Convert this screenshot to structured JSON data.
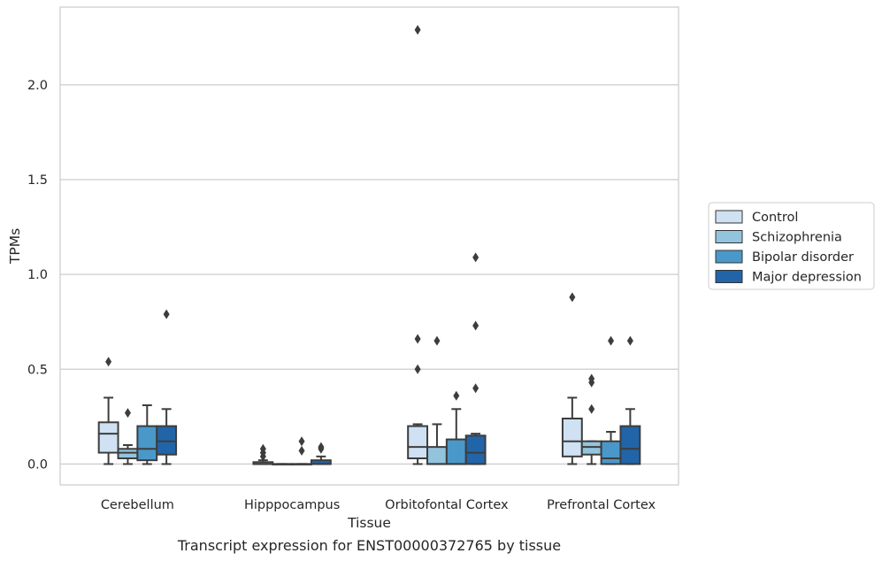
{
  "chart_data": {
    "type": "box",
    "title": "",
    "xlabel": "Tissue",
    "ylabel": "TPMs",
    "caption": "Transcript expression for ENST00000372765 by tissue",
    "ylim": [
      -0.11,
      2.41
    ],
    "yticks": [
      0.0,
      0.5,
      1.0,
      1.5,
      2.0
    ],
    "ytick_labels": [
      "0.0",
      "0.5",
      "1.0",
      "1.5",
      "2.0"
    ],
    "grid": "horizontal",
    "legend_position": "right",
    "categories": [
      "Cerebellum",
      "Hipppocampus",
      "Orbitofontal Cortex",
      "Prefrontal Cortex"
    ],
    "series": [
      {
        "name": "Control",
        "color": "#cfe1f2",
        "boxes": [
          {
            "whislo": 0.0,
            "q1": 0.06,
            "med": 0.16,
            "q3": 0.22,
            "whishi": 0.35,
            "fliers": [
              0.54
            ]
          },
          {
            "whislo": 0.0,
            "q1": 0.0,
            "med": 0.0,
            "q3": 0.01,
            "whishi": 0.02,
            "fliers": [
              0.04,
              0.06,
              0.08
            ]
          },
          {
            "whislo": 0.0,
            "q1": 0.03,
            "med": 0.09,
            "q3": 0.2,
            "whishi": 0.21,
            "fliers": [
              0.5,
              0.66,
              2.29
            ]
          },
          {
            "whislo": 0.0,
            "q1": 0.04,
            "med": 0.12,
            "q3": 0.24,
            "whishi": 0.35,
            "fliers": [
              0.88
            ]
          }
        ]
      },
      {
        "name": "Schizophrenia",
        "color": "#93c4de",
        "boxes": [
          {
            "whislo": 0.0,
            "q1": 0.03,
            "med": 0.06,
            "q3": 0.08,
            "whishi": 0.1,
            "fliers": [
              0.27
            ]
          },
          {
            "whislo": 0.0,
            "q1": 0.0,
            "med": 0.0,
            "q3": 0.0,
            "whishi": 0.0,
            "fliers": []
          },
          {
            "whislo": 0.0,
            "q1": 0.0,
            "med": 0.0,
            "q3": 0.09,
            "whishi": 0.21,
            "fliers": [
              0.65
            ]
          },
          {
            "whislo": 0.0,
            "q1": 0.05,
            "med": 0.09,
            "q3": 0.12,
            "whishi": 0.12,
            "fliers": [
              0.29,
              0.43,
              0.45
            ]
          }
        ]
      },
      {
        "name": "Bipolar disorder",
        "color": "#4a98c9",
        "boxes": [
          {
            "whislo": 0.0,
            "q1": 0.02,
            "med": 0.08,
            "q3": 0.2,
            "whishi": 0.31,
            "fliers": []
          },
          {
            "whislo": 0.0,
            "q1": 0.0,
            "med": 0.0,
            "q3": 0.0,
            "whishi": 0.0,
            "fliers": [
              0.07,
              0.12
            ]
          },
          {
            "whislo": 0.0,
            "q1": 0.0,
            "med": 0.0,
            "q3": 0.13,
            "whishi": 0.29,
            "fliers": [
              0.36
            ]
          },
          {
            "whislo": 0.0,
            "q1": 0.0,
            "med": 0.03,
            "q3": 0.12,
            "whishi": 0.17,
            "fliers": [
              0.65
            ]
          }
        ]
      },
      {
        "name": "Major depression",
        "color": "#2264a8",
        "boxes": [
          {
            "whislo": 0.0,
            "q1": 0.05,
            "med": 0.12,
            "q3": 0.2,
            "whishi": 0.29,
            "fliers": [
              0.79
            ]
          },
          {
            "whislo": 0.0,
            "q1": 0.0,
            "med": 0.0,
            "q3": 0.02,
            "whishi": 0.04,
            "fliers": [
              0.08,
              0.09
            ]
          },
          {
            "whislo": 0.0,
            "q1": 0.0,
            "med": 0.06,
            "q3": 0.15,
            "whishi": 0.16,
            "fliers": [
              0.4,
              0.73,
              1.09
            ]
          },
          {
            "whislo": 0.0,
            "q1": 0.0,
            "med": 0.08,
            "q3": 0.2,
            "whishi": 0.29,
            "fliers": [
              0.65
            ]
          }
        ]
      }
    ]
  }
}
